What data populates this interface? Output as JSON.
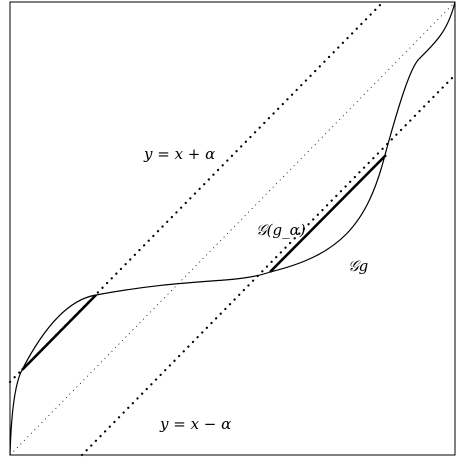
{
  "labels": {
    "upper_line": "y = x + α",
    "lower_line": "y = x − α",
    "g_alpha": "𝒢(g_α)",
    "g": "𝒢g"
  },
  "colors": {
    "ink": "#000000",
    "frame": "#000000",
    "background": "#ffffff"
  }
}
